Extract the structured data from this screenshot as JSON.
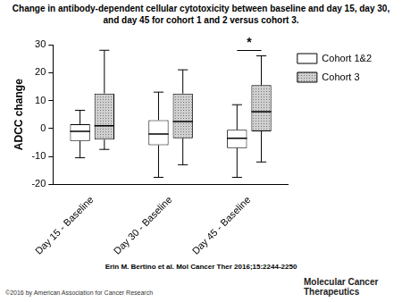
{
  "chart_data": {
    "type": "box",
    "title": "Change in antibody-dependent cellular cytotoxicity between baseline and day 15, day 30, and day 45 for cohort 1 and 2 versus cohort 3.",
    "y_label": "ADCC change",
    "categories": [
      "Day 15 - Baseline",
      "Day 30 - Baseline",
      "Day 45 - Baseline"
    ],
    "series": [
      {
        "name": "Cohort 1&2",
        "color": "#ffffff",
        "min": [
          -10.5,
          -17.5,
          -17.5
        ],
        "q1": [
          -4.5,
          -6,
          -7
        ],
        "median": [
          -1,
          -2,
          -3.5
        ],
        "q3": [
          1.5,
          3,
          -0.5
        ],
        "max": [
          6.5,
          13,
          8.5
        ]
      },
      {
        "name": "Cohort 3",
        "color": "#cfcfcf",
        "min": [
          -7.5,
          -13,
          -12
        ],
        "q1": [
          -4,
          -3.5,
          -1
        ],
        "median": [
          1,
          2.5,
          6
        ],
        "q3": [
          12.5,
          12.5,
          15.5
        ],
        "max": [
          28,
          21,
          26
        ]
      }
    ],
    "ylim": [
      -20,
      30
    ],
    "yticks": [
      -20,
      -10,
      0,
      10,
      20,
      30
    ],
    "grid": false,
    "legend": "right",
    "annotations": [
      {
        "text": "*",
        "category": "Day 45 - Baseline"
      }
    ]
  },
  "footer": {
    "citation": "Erin M. Bertino et al. Mol Cancer Ther 2016;15:2244-2250",
    "copyright": "©2016 by American Association for Cancer Research",
    "journal": "Molecular Cancer Therapeutics"
  }
}
